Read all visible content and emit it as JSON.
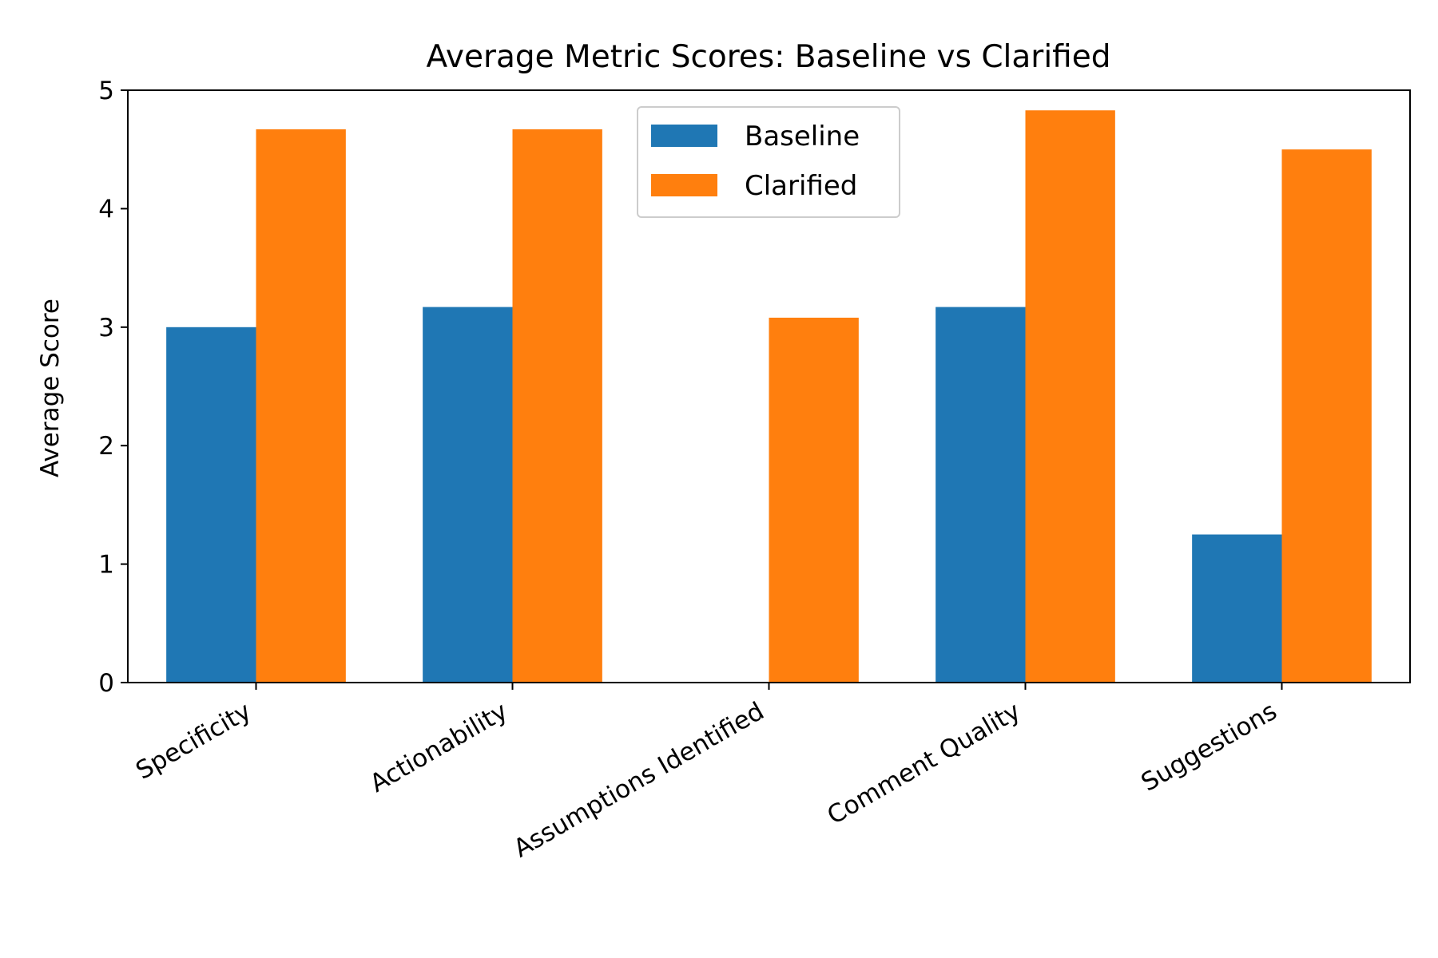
{
  "chart_data": {
    "type": "bar",
    "title": "Average Metric Scores: Baseline vs Clarified",
    "xlabel": "",
    "ylabel": "Average Score",
    "categories": [
      "Specificity",
      "Actionability",
      "Assumptions Identified",
      "Comment Quality",
      "Suggestions"
    ],
    "series": [
      {
        "name": "Baseline",
        "color": "#1f77b4",
        "values": [
          3.0,
          3.17,
          0,
          3.17,
          1.25
        ]
      },
      {
        "name": "Clarified",
        "color": "#ff7f0e",
        "values": [
          4.67,
          4.67,
          3.08,
          4.83,
          4.5
        ]
      }
    ],
    "ylim": [
      0,
      5
    ],
    "yticks": [
      "0",
      "1",
      "2",
      "3",
      "4",
      "5"
    ],
    "grid": false,
    "legend_position": "top-center"
  }
}
